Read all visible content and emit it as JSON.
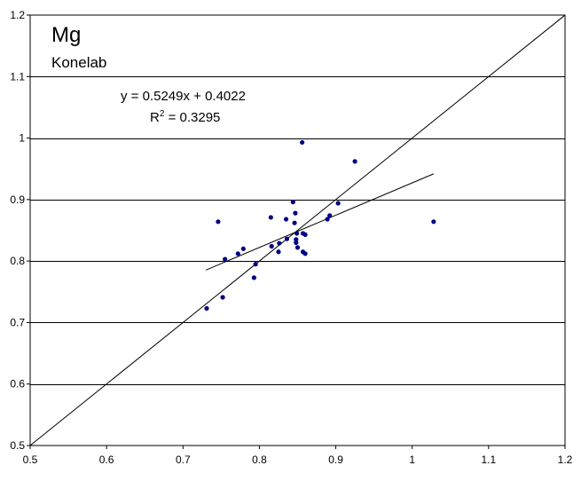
{
  "chart_data": {
    "type": "scatter",
    "title": "Mg",
    "subtitle": "Konelab",
    "xlabel": "",
    "ylabel": "",
    "xlim": [
      0.5,
      1.2
    ],
    "ylim": [
      0.5,
      1.2
    ],
    "x_ticks": [
      0.5,
      0.6,
      0.7,
      0.8,
      0.9,
      1.0,
      1.1,
      1.2
    ],
    "x_tick_labels": [
      "0.5",
      "0.6",
      "0.7",
      "0.8",
      "0.9",
      "1",
      "1.1",
      "1.2"
    ],
    "y_ticks": [
      0.5,
      0.6,
      0.7,
      0.8,
      0.9,
      1.0,
      1.1,
      1.2
    ],
    "y_tick_labels": [
      "0.5",
      "0.6",
      "0.7",
      "0.8",
      "0.9",
      "1",
      "1.1",
      "1.2"
    ],
    "grid": "horizontal",
    "equation": "y = 0.5249x + 0.4022",
    "r_squared_label": "R",
    "r_squared_sup": "2",
    "r_squared_value": " = 0.3295",
    "trendline": {
      "slope": 0.5249,
      "intercept": 0.4022,
      "x_range": [
        0.73,
        1.028
      ]
    },
    "identity_line": {
      "x_range": [
        0.5,
        1.2
      ]
    },
    "points": [
      {
        "x": 0.731,
        "y": 0.723
      },
      {
        "x": 0.746,
        "y": 0.864
      },
      {
        "x": 0.752,
        "y": 0.741
      },
      {
        "x": 0.755,
        "y": 0.803
      },
      {
        "x": 0.772,
        "y": 0.812
      },
      {
        "x": 0.779,
        "y": 0.82
      },
      {
        "x": 0.793,
        "y": 0.773
      },
      {
        "x": 0.795,
        "y": 0.795
      },
      {
        "x": 0.815,
        "y": 0.871
      },
      {
        "x": 0.816,
        "y": 0.824
      },
      {
        "x": 0.825,
        "y": 0.815
      },
      {
        "x": 0.826,
        "y": 0.829
      },
      {
        "x": 0.835,
        "y": 0.868
      },
      {
        "x": 0.836,
        "y": 0.836
      },
      {
        "x": 0.844,
        "y": 0.896
      },
      {
        "x": 0.846,
        "y": 0.862
      },
      {
        "x": 0.847,
        "y": 0.878
      },
      {
        "x": 0.848,
        "y": 0.83
      },
      {
        "x": 0.848,
        "y": 0.835
      },
      {
        "x": 0.849,
        "y": 0.845
      },
      {
        "x": 0.85,
        "y": 0.822
      },
      {
        "x": 0.856,
        "y": 0.993
      },
      {
        "x": 0.857,
        "y": 0.845
      },
      {
        "x": 0.857,
        "y": 0.815
      },
      {
        "x": 0.86,
        "y": 0.843
      },
      {
        "x": 0.86,
        "y": 0.812
      },
      {
        "x": 0.889,
        "y": 0.868
      },
      {
        "x": 0.892,
        "y": 0.874
      },
      {
        "x": 0.903,
        "y": 0.894
      },
      {
        "x": 0.925,
        "y": 0.962
      },
      {
        "x": 1.028,
        "y": 0.864
      }
    ],
    "colors": {
      "points": "#000080",
      "lines": "#000000",
      "grid": "#000000",
      "background": "#ffffff"
    }
  }
}
